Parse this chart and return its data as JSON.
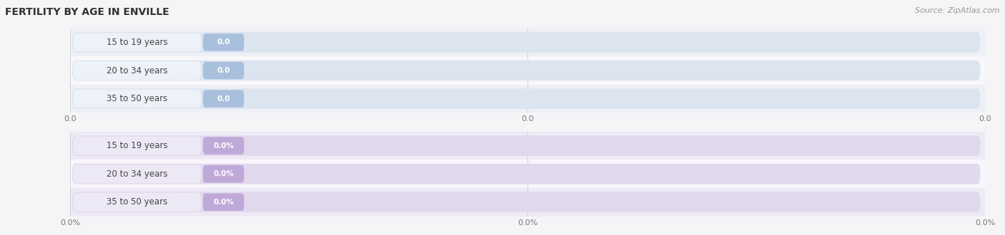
{
  "title": "FERTILITY BY AGE IN ENVILLE",
  "source_text": "Source: ZipAtlas.com",
  "top_chart": {
    "categories": [
      "15 to 19 years",
      "20 to 34 years",
      "35 to 50 years"
    ],
    "values": [
      0.0,
      0.0,
      0.0
    ],
    "bar_bg_color": "#dce4f0",
    "label_bg_color": "#edf1f8",
    "value_bg_color": "#a8c0dc",
    "label_text_color": "#444444",
    "value_text_color": "#ffffff",
    "row_colors": [
      "#eef0f5",
      "#f8f8fb"
    ],
    "tick_labels": [
      "0.0",
      "0.0",
      "0.0"
    ],
    "is_percent": false
  },
  "bottom_chart": {
    "categories": [
      "15 to 19 years",
      "20 to 34 years",
      "35 to 50 years"
    ],
    "values": [
      0.0,
      0.0,
      0.0
    ],
    "bar_bg_color": "#e0d8ec",
    "label_bg_color": "#ede8f5",
    "value_bg_color": "#c0a8d8",
    "label_text_color": "#444444",
    "value_text_color": "#ffffff",
    "row_colors": [
      "#eeeaf5",
      "#f8f5fb"
    ],
    "tick_labels": [
      "0.0%",
      "0.0%",
      "0.0%"
    ],
    "is_percent": true
  },
  "bg_color": "#f5f5f8",
  "title_fontsize": 10,
  "label_fontsize": 8.5,
  "value_fontsize": 7.5,
  "tick_fontsize": 8,
  "source_fontsize": 8
}
